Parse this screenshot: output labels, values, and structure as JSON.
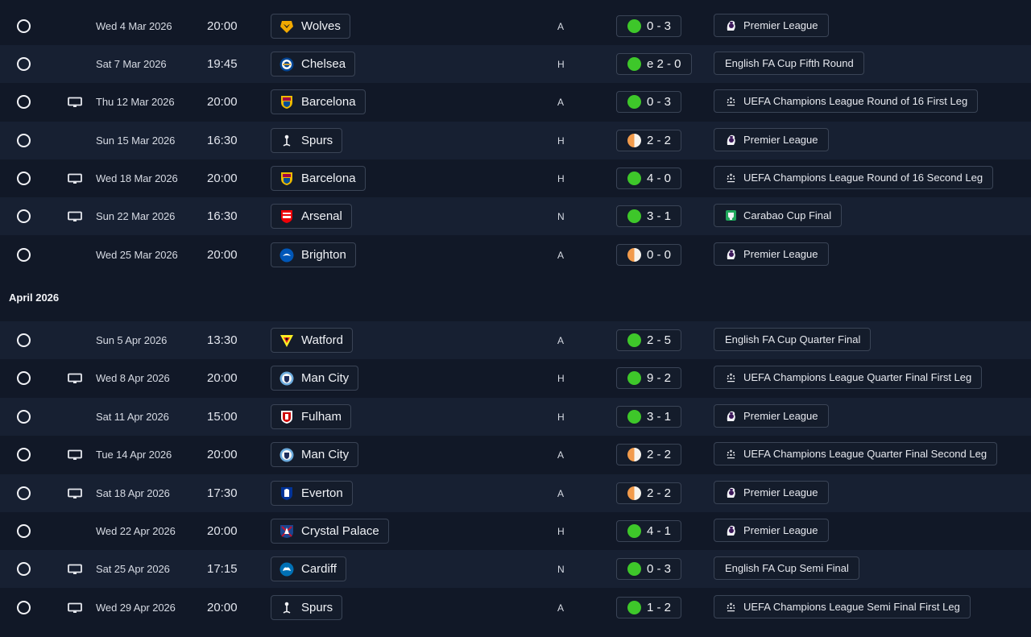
{
  "month_header": "April 2026",
  "colors": {
    "win": "#3ec72a",
    "draw": "#f29b4b",
    "background": "#111827",
    "row_alt": "#172032"
  },
  "fixtures": [
    {
      "date": "Wed 4 Mar 2026",
      "time": "20:00",
      "tv": false,
      "team": "Wolves",
      "crest": "wolves-crest",
      "venue": "A",
      "score": "0 - 3",
      "outcome": "win",
      "competition": "Premier League",
      "comp_icon": "premier-league-icon"
    },
    {
      "date": "Sat 7 Mar 2026",
      "time": "19:45",
      "tv": false,
      "team": "Chelsea",
      "crest": "chelsea-crest",
      "venue": "H",
      "score": "e 2 - 0",
      "outcome": "win",
      "competition": "English FA Cup Fifth Round",
      "comp_icon": ""
    },
    {
      "date": "Thu 12 Mar 2026",
      "time": "20:00",
      "tv": true,
      "team": "Barcelona",
      "crest": "barcelona-crest",
      "venue": "A",
      "score": "0 - 3",
      "outcome": "win",
      "competition": "UEFA Champions League Round of 16  First Leg",
      "comp_icon": "champions-league-icon"
    },
    {
      "date": "Sun 15 Mar 2026",
      "time": "16:30",
      "tv": false,
      "team": "Spurs",
      "crest": "spurs-crest",
      "venue": "H",
      "score": "2 - 2",
      "outcome": "draw",
      "competition": "Premier League",
      "comp_icon": "premier-league-icon"
    },
    {
      "date": "Wed 18 Mar 2026",
      "time": "20:00",
      "tv": true,
      "team": "Barcelona",
      "crest": "barcelona-crest",
      "venue": "H",
      "score": "4 - 0",
      "outcome": "win",
      "competition": "UEFA Champions League Round of 16  Second Leg",
      "comp_icon": "champions-league-icon"
    },
    {
      "date": "Sun 22 Mar 2026",
      "time": "16:30",
      "tv": true,
      "team": "Arsenal",
      "crest": "arsenal-crest",
      "venue": "N",
      "score": "3 - 1",
      "outcome": "win",
      "competition": "Carabao Cup Final",
      "comp_icon": "carabao-cup-icon"
    },
    {
      "date": "Wed 25 Mar 2026",
      "time": "20:00",
      "tv": false,
      "team": "Brighton",
      "crest": "brighton-crest",
      "venue": "A",
      "score": "0 - 0",
      "outcome": "draw",
      "competition": "Premier League",
      "comp_icon": "premier-league-icon"
    },
    {
      "date": "Sun 5 Apr 2026",
      "time": "13:30",
      "tv": false,
      "team": "Watford",
      "crest": "watford-crest",
      "venue": "A",
      "score": "2 - 5",
      "outcome": "win",
      "competition": "English FA Cup Quarter Final",
      "comp_icon": ""
    },
    {
      "date": "Wed 8 Apr 2026",
      "time": "20:00",
      "tv": true,
      "team": "Man City",
      "crest": "man-city-crest",
      "venue": "H",
      "score": "9 - 2",
      "outcome": "win",
      "competition": "UEFA Champions League Quarter Final First Leg",
      "comp_icon": "champions-league-icon"
    },
    {
      "date": "Sat 11 Apr 2026",
      "time": "15:00",
      "tv": false,
      "team": "Fulham",
      "crest": "fulham-crest",
      "venue": "H",
      "score": "3 - 1",
      "outcome": "win",
      "competition": "Premier League",
      "comp_icon": "premier-league-icon"
    },
    {
      "date": "Tue 14 Apr 2026",
      "time": "20:00",
      "tv": true,
      "team": "Man City",
      "crest": "man-city-crest",
      "venue": "A",
      "score": "2 - 2",
      "outcome": "draw",
      "competition": "UEFA Champions League Quarter Final Second Leg",
      "comp_icon": "champions-league-icon"
    },
    {
      "date": "Sat 18 Apr 2026",
      "time": "17:30",
      "tv": true,
      "team": "Everton",
      "crest": "everton-crest",
      "venue": "A",
      "score": "2 - 2",
      "outcome": "draw",
      "competition": "Premier League",
      "comp_icon": "premier-league-icon"
    },
    {
      "date": "Wed 22 Apr 2026",
      "time": "20:00",
      "tv": false,
      "team": "Crystal Palace",
      "crest": "crystal-palace-crest",
      "venue": "H",
      "score": "4 - 1",
      "outcome": "win",
      "competition": "Premier League",
      "comp_icon": "premier-league-icon"
    },
    {
      "date": "Sat 25 Apr 2026",
      "time": "17:15",
      "tv": true,
      "team": "Cardiff",
      "crest": "cardiff-crest",
      "venue": "N",
      "score": "0 - 3",
      "outcome": "win",
      "competition": "English FA Cup Semi Final",
      "comp_icon": ""
    },
    {
      "date": "Wed 29 Apr 2026",
      "time": "20:00",
      "tv": true,
      "team": "Spurs",
      "crest": "spurs-crest",
      "venue": "A",
      "score": "1 - 2",
      "outcome": "win",
      "competition": "UEFA Champions League Semi Final First Leg",
      "comp_icon": "champions-league-icon"
    }
  ]
}
